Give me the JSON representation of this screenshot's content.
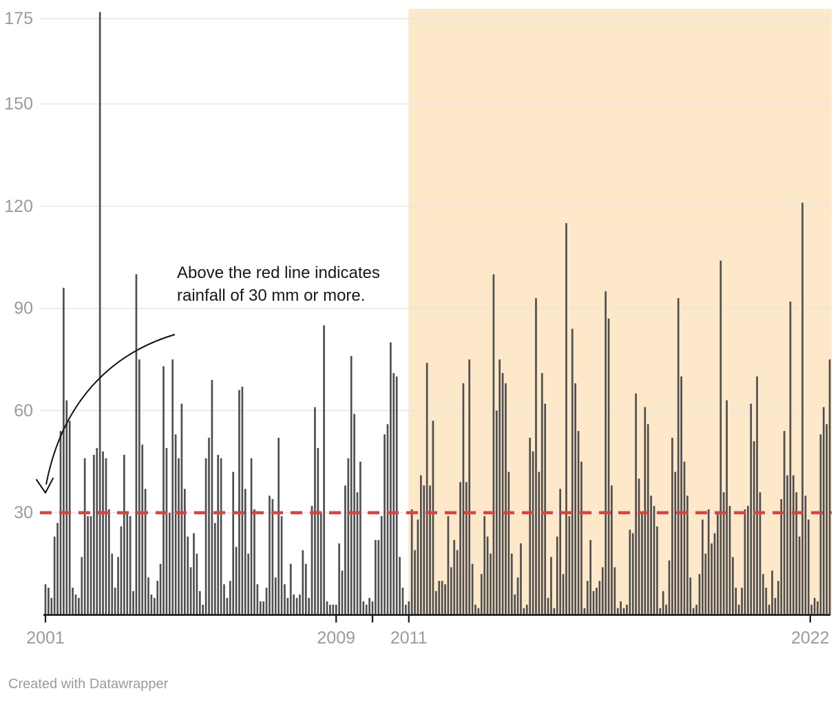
{
  "chart_data": {
    "type": "bar",
    "title": "",
    "xlabel": "",
    "ylabel": "",
    "unit": "mm",
    "x_start": "2001-01",
    "x_end": "2022-08",
    "ylim": [
      0,
      178
    ],
    "grid": "horizontal",
    "y_axis_ticks": [
      30,
      60,
      90,
      120,
      150,
      175
    ],
    "x_axis_ticks": [
      {
        "year": 2001,
        "label": "2001"
      },
      {
        "year": 2009,
        "label": "2009"
      },
      {
        "year": 2010,
        "label": ""
      },
      {
        "year": 2011,
        "label": "2011"
      },
      {
        "year": 2022,
        "label": "2022"
      }
    ],
    "threshold_line": {
      "value": 30,
      "style": "dashed",
      "color": "#d8453e"
    },
    "highlight_range": {
      "from": "2011-01",
      "to": "2022-09",
      "color": "#fde8ca"
    },
    "annotation": {
      "text": "Above the red line indicates rainfall of 30 mm or more.",
      "arrow_points_to_value": 30
    },
    "bar_color": "#4f4f4f",
    "series": [
      {
        "year": 2001,
        "monthly_mm": [
          9,
          8,
          5,
          23,
          27,
          54,
          96,
          63,
          57,
          8,
          6,
          5
        ]
      },
      {
        "year": 2002,
        "monthly_mm": [
          17,
          46,
          29,
          29,
          47,
          49,
          177,
          48,
          46,
          31,
          18,
          8
        ]
      },
      {
        "year": 2003,
        "monthly_mm": [
          17,
          26,
          47,
          30,
          29,
          7,
          100,
          75,
          50,
          37,
          11,
          6
        ]
      },
      {
        "year": 2004,
        "monthly_mm": [
          5,
          10,
          15,
          73,
          49,
          30,
          75,
          53,
          46,
          62,
          37,
          23
        ]
      },
      {
        "year": 2005,
        "monthly_mm": [
          14,
          24,
          18,
          7,
          3,
          46,
          52,
          69,
          27,
          47,
          46,
          9
        ]
      },
      {
        "year": 2006,
        "monthly_mm": [
          5,
          10,
          42,
          20,
          66,
          67,
          37,
          18,
          46,
          31,
          9,
          4
        ]
      },
      {
        "year": 2007,
        "monthly_mm": [
          4,
          8,
          35,
          34,
          11,
          52,
          29,
          9,
          5,
          15,
          6,
          5
        ]
      },
      {
        "year": 2008,
        "monthly_mm": [
          6,
          19,
          15,
          5,
          32,
          61,
          49,
          30,
          85,
          4,
          3,
          3
        ]
      },
      {
        "year": 2009,
        "monthly_mm": [
          3,
          21,
          13,
          38,
          46,
          76,
          59,
          36,
          45,
          4,
          3,
          5
        ]
      },
      {
        "year": 2010,
        "monthly_mm": [
          4,
          22,
          22,
          29,
          53,
          56,
          80,
          71,
          70,
          17,
          8,
          3
        ]
      },
      {
        "year": 2011,
        "monthly_mm": [
          4,
          31,
          19,
          28,
          41,
          38,
          74,
          38,
          57,
          7,
          10,
          10
        ]
      },
      {
        "year": 2012,
        "monthly_mm": [
          9,
          29,
          14,
          22,
          19,
          39,
          68,
          39,
          75,
          15,
          3,
          2
        ]
      },
      {
        "year": 2013,
        "monthly_mm": [
          12,
          29,
          23,
          18,
          100,
          60,
          75,
          71,
          68,
          42,
          18,
          6
        ]
      },
      {
        "year": 2014,
        "monthly_mm": [
          11,
          21,
          2,
          3,
          52,
          48,
          93,
          42,
          71,
          62,
          5,
          17
        ]
      },
      {
        "year": 2015,
        "monthly_mm": [
          2,
          23,
          37,
          12,
          115,
          29,
          84,
          68,
          54,
          45,
          2,
          10
        ]
      },
      {
        "year": 2016,
        "monthly_mm": [
          22,
          7,
          8,
          10,
          14,
          95,
          87,
          38,
          14,
          2,
          4,
          2
        ]
      },
      {
        "year": 2017,
        "monthly_mm": [
          3,
          25,
          24,
          65,
          40,
          30,
          61,
          56,
          35,
          32,
          26,
          2
        ]
      },
      {
        "year": 2018,
        "monthly_mm": [
          7,
          3,
          16,
          52,
          42,
          93,
          70,
          45,
          35,
          11,
          2,
          3
        ]
      },
      {
        "year": 2019,
        "monthly_mm": [
          12,
          28,
          18,
          31,
          21,
          24,
          30,
          104,
          36,
          63,
          32,
          17
        ]
      },
      {
        "year": 2020,
        "monthly_mm": [
          8,
          3,
          8,
          31,
          32,
          62,
          51,
          70,
          36,
          12,
          8,
          3
        ]
      },
      {
        "year": 2021,
        "monthly_mm": [
          13,
          5,
          10,
          34,
          54,
          41,
          92,
          41,
          36,
          23,
          121,
          35
        ]
      },
      {
        "year": 2022,
        "monthly_mm": [
          28,
          3,
          5,
          4,
          53,
          61,
          56,
          75
        ]
      }
    ]
  },
  "footer": {
    "credit": "Created with Datawrapper"
  }
}
